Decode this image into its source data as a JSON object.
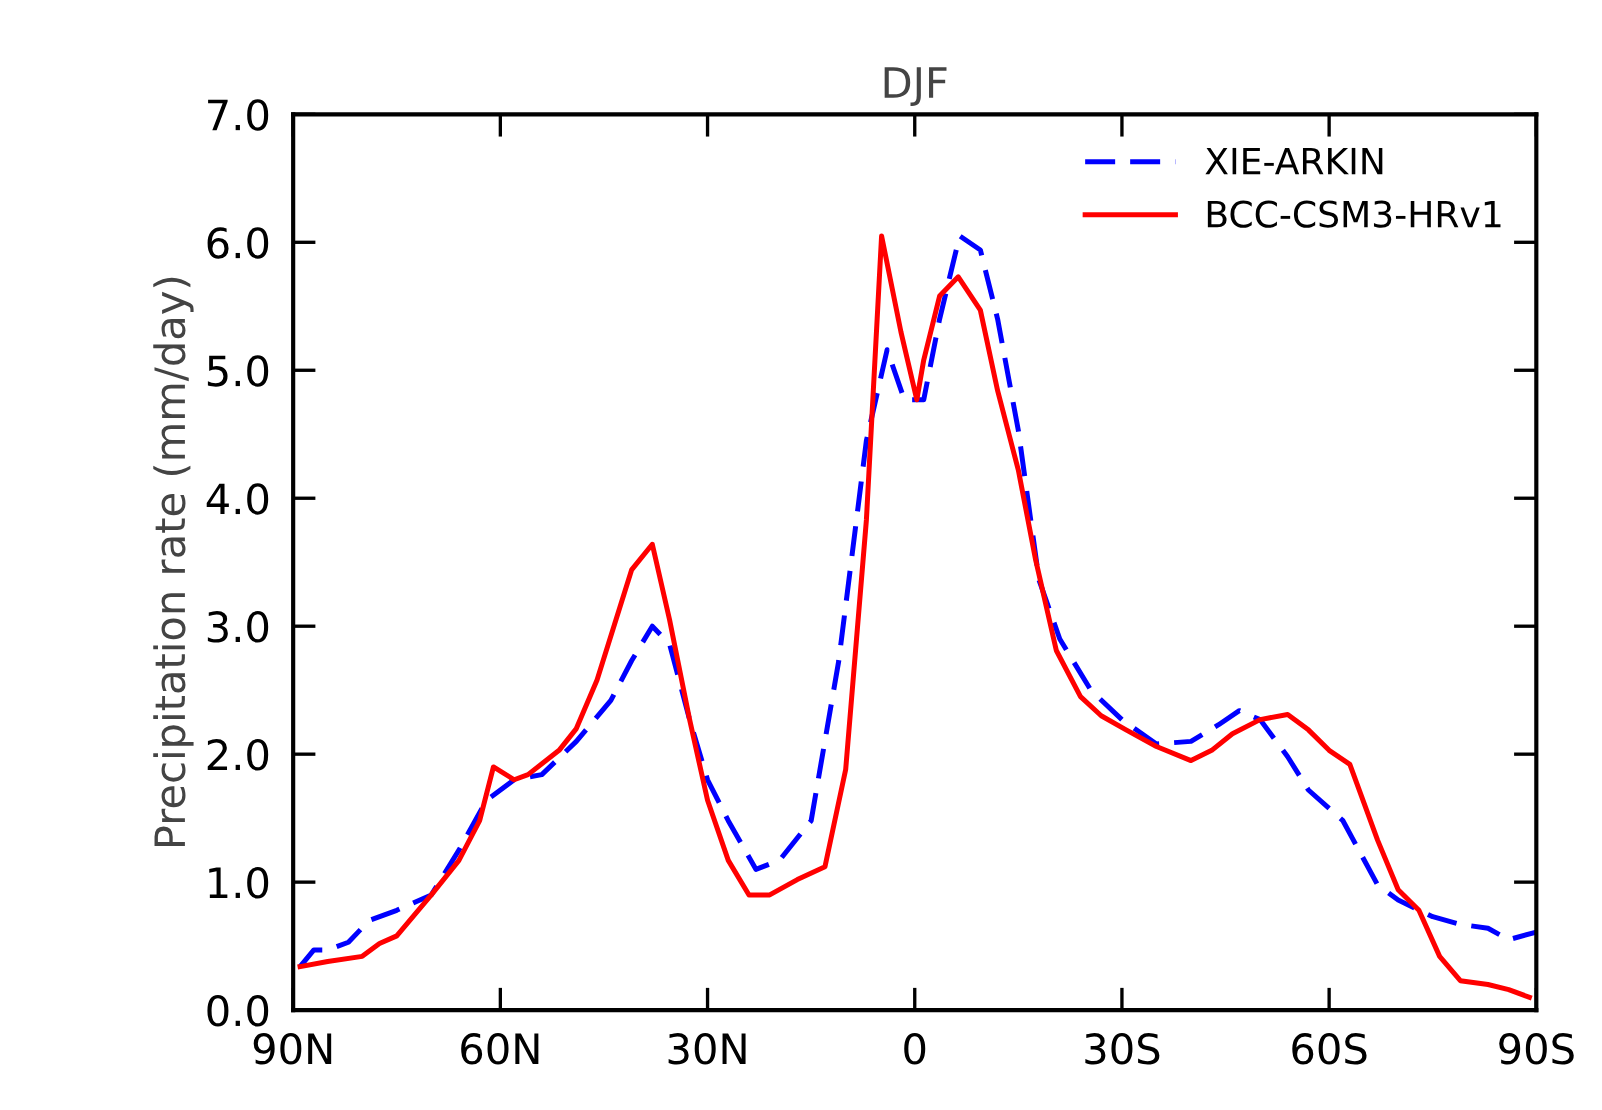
{
  "chart_data": {
    "type": "line",
    "title": "DJF",
    "ylabel": "Precipitation rate (mm/day)",
    "xlim": [
      90,
      -90
    ],
    "xticks": [
      {
        "value": 90,
        "label": "90N"
      },
      {
        "value": 60,
        "label": "60N"
      },
      {
        "value": 30,
        "label": "30N"
      },
      {
        "value": 0,
        "label": "0"
      },
      {
        "value": -30,
        "label": "30S"
      },
      {
        "value": -60,
        "label": "60S"
      },
      {
        "value": -90,
        "label": "90S"
      }
    ],
    "ylim": [
      0,
      7
    ],
    "yticks": [
      {
        "value": 0,
        "label": "0.0"
      },
      {
        "value": 1,
        "label": "1.0"
      },
      {
        "value": 2,
        "label": "2.0"
      },
      {
        "value": 3,
        "label": "3.0"
      },
      {
        "value": 4,
        "label": "4.0"
      },
      {
        "value": 5,
        "label": "5.0"
      },
      {
        "value": 6,
        "label": "6.0"
      },
      {
        "value": 7,
        "label": "7.0"
      }
    ],
    "legend": "top right",
    "grid": false,
    "marker": "none",
    "series": [
      {
        "name": "XIE-ARKIN",
        "color": "#0000ff",
        "line_style": "dashed",
        "x": [
          89,
          87,
          85,
          82,
          79,
          75,
          70,
          66,
          62,
          58,
          54,
          49,
          44,
          41,
          38,
          35.5,
          32.6,
          30,
          27,
          23,
          19.6,
          15,
          11,
          7,
          4,
          1.5,
          -1.3,
          -3.6,
          -6.5,
          -9.5,
          -12,
          -15,
          -18,
          -21,
          -25.5,
          -30,
          -35,
          -40,
          -44,
          -47,
          -50,
          -54,
          -57,
          -62,
          -67,
          -70,
          -75,
          -79,
          -83,
          -86,
          -90
        ],
        "values": [
          0.34,
          0.47,
          0.47,
          0.53,
          0.7,
          0.78,
          0.9,
          1.25,
          1.64,
          1.8,
          1.84,
          2.1,
          2.42,
          2.73,
          3.0,
          2.86,
          2.27,
          1.8,
          1.48,
          1.1,
          1.17,
          1.48,
          2.73,
          4.45,
          5.16,
          4.77,
          4.77,
          5.4,
          6.05,
          5.94,
          5.4,
          4.53,
          3.36,
          2.9,
          2.5,
          2.27,
          2.08,
          2.1,
          2.23,
          2.34,
          2.27,
          1.98,
          1.72,
          1.48,
          0.98,
          0.86,
          0.73,
          0.67,
          0.64,
          0.55,
          0.61
        ]
      },
      {
        "name": "BCC-CSM3-HRv1",
        "color": "#ff0000",
        "line_style": "solid",
        "x": [
          89,
          85,
          80,
          77.5,
          75,
          70,
          66,
          63,
          61,
          58,
          56,
          51.5,
          49,
          46,
          41,
          38,
          35.5,
          32.6,
          30,
          27,
          24,
          21,
          17,
          13,
          10,
          7,
          4.8,
          2,
          -0.3,
          -1.3,
          -3.6,
          -6.3,
          -9.5,
          -12,
          -15,
          -17.5,
          -20.5,
          -24,
          -27,
          -30.6,
          -35,
          -40,
          -43,
          -46,
          -50,
          -54,
          -57,
          -60,
          -63,
          -67,
          -70,
          -73,
          -76,
          -79,
          -83,
          -86,
          -89
        ],
        "values": [
          0.34,
          0.38,
          0.42,
          0.52,
          0.58,
          0.9,
          1.17,
          1.48,
          1.9,
          1.8,
          1.84,
          2.03,
          2.2,
          2.58,
          3.44,
          3.64,
          3.05,
          2.27,
          1.64,
          1.17,
          0.9,
          0.9,
          1.02,
          1.12,
          1.88,
          3.83,
          6.05,
          5.3,
          4.77,
          5.08,
          5.58,
          5.73,
          5.47,
          4.84,
          4.22,
          3.52,
          2.81,
          2.45,
          2.3,
          2.19,
          2.06,
          1.95,
          2.03,
          2.16,
          2.27,
          2.31,
          2.19,
          2.03,
          1.92,
          1.33,
          0.94,
          0.78,
          0.42,
          0.23,
          0.2,
          0.16,
          0.1
        ]
      }
    ]
  }
}
